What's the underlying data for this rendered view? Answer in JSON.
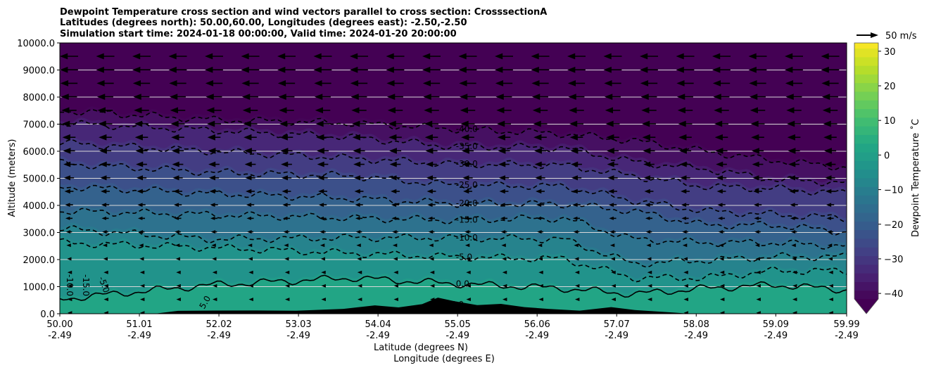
{
  "chart_data": {
    "type": "contour",
    "title_lines": [
      "Dewpoint Temperature cross section and wind vectors parallel to cross section: CrosssectionA",
      "Latitudes (degrees north): 50.00,60.00, Longitudes (degrees east): -2.50,-2.50",
      "Simulation start time: 2024-01-18 00:00:00, Valid time: 2024-01-20 20:00:00"
    ],
    "xlabel": "Latitude (degrees N)",
    "xlabel2": "Longitude (degrees E)",
    "ylabel": "Altitude (meters)",
    "xlim": [
      50.0,
      59.99
    ],
    "ylim": [
      0,
      10000
    ],
    "x_ticks": [
      {
        "lat": "50.00",
        "lon": "-2.49",
        "v": 50.0
      },
      {
        "lat": "51.01",
        "lon": "-2.49",
        "v": 51.01
      },
      {
        "lat": "52.02",
        "lon": "-2.49",
        "v": 52.02
      },
      {
        "lat": "53.03",
        "lon": "-2.49",
        "v": 53.03
      },
      {
        "lat": "54.04",
        "lon": "-2.49",
        "v": 54.04
      },
      {
        "lat": "55.05",
        "lon": "-2.49",
        "v": 55.05
      },
      {
        "lat": "56.06",
        "lon": "-2.49",
        "v": 56.06
      },
      {
        "lat": "57.07",
        "lon": "-2.49",
        "v": 57.07
      },
      {
        "lat": "58.08",
        "lon": "-2.49",
        "v": 58.08
      },
      {
        "lat": "59.09",
        "lon": "-2.49",
        "v": 59.09
      },
      {
        "lat": "59.99",
        "lon": "-2.49",
        "v": 59.99
      }
    ],
    "y_ticks": [
      "0.0",
      "1000.0",
      "2000.0",
      "3000.0",
      "4000.0",
      "5000.0",
      "6000.0",
      "7000.0",
      "8000.0",
      "9000.0",
      "10000.0"
    ],
    "contour_x": [
      50.0,
      51.92,
      53.71,
      54.96,
      56.39,
      57.28,
      58.18,
      59.07,
      59.99
    ],
    "contours": [
      {
        "level": -40,
        "label": "-40.0",
        "alt": [
          7505,
          7168,
          7038,
          6830,
          6648,
          6389,
          5999,
          5662,
          5402
        ]
      },
      {
        "level": -35,
        "label": "-35.0",
        "alt": [
          7038,
          6778,
          6518,
          6181,
          6129,
          5610,
          5350,
          4960,
          4830
        ]
      },
      {
        "level": -30,
        "label": "-30.0",
        "alt": [
          6311,
          5999,
          5739,
          5532,
          5480,
          5090,
          4701,
          4623,
          4441
        ]
      },
      {
        "level": -25,
        "label": "-25.0",
        "alt": [
          5558,
          5220,
          5090,
          4753,
          4701,
          4181,
          3792,
          3662,
          3532
        ]
      },
      {
        "level": -20,
        "label": "-20.0",
        "alt": [
          4701,
          4441,
          4259,
          4077,
          4051,
          3792,
          3272,
          3272,
          3013
        ]
      },
      {
        "level": -15,
        "label": "-15.0",
        "alt": [
          3792,
          3662,
          3532,
          3454,
          3532,
          2753,
          2623,
          2623,
          2493
        ]
      },
      {
        "level": -10,
        "label": "-10.0",
        "alt": [
          3142,
          2753,
          2805,
          2805,
          2753,
          1844,
          1974,
          2104,
          2104
        ]
      },
      {
        "level": -5,
        "label": "-5.0",
        "alt": [
          2623,
          2441,
          2233,
          2104,
          2026,
          1324,
          1324,
          1584,
          1584
        ]
      },
      {
        "level": 0,
        "label": "0.0",
        "alt": [
          545,
          1065,
          1324,
          1117,
          935,
          727,
          935,
          1065,
          883
        ]
      }
    ],
    "extra_labels": [
      "5.0",
      "5.0",
      "-10.0",
      "-15.0",
      "-5.0"
    ],
    "terrain": [
      [
        50.0,
        0
      ],
      [
        51.2,
        0
      ],
      [
        51.5,
        60
      ],
      [
        52.0,
        100
      ],
      [
        52.5,
        60
      ],
      [
        53.0,
        80
      ],
      [
        53.6,
        120
      ],
      [
        54.0,
        250
      ],
      [
        54.3,
        180
      ],
      [
        54.6,
        320
      ],
      [
        54.8,
        550
      ],
      [
        55.0,
        420
      ],
      [
        55.3,
        300
      ],
      [
        55.6,
        350
      ],
      [
        55.9,
        200
      ],
      [
        56.2,
        120
      ],
      [
        56.6,
        60
      ],
      [
        57.0,
        200
      ],
      [
        57.3,
        80
      ],
      [
        57.8,
        30
      ],
      [
        58.0,
        0
      ],
      [
        59.99,
        0
      ]
    ],
    "wind": {
      "direction": "southward (leftward)",
      "reference_label": "50 m/s",
      "reference_speed": 50
    },
    "colorbar": {
      "label": "Dewpoint Temperature $^\\circ$C",
      "label_text": "Dewpoint Temperature ˚C",
      "ticks": [
        "30",
        "20",
        "10",
        "0",
        "−10",
        "−20",
        "−30",
        "−40"
      ],
      "tick_values": [
        30,
        20,
        10,
        0,
        -10,
        -20,
        -30,
        -40
      ],
      "range": [
        -42,
        33
      ],
      "extend": "min"
    }
  }
}
